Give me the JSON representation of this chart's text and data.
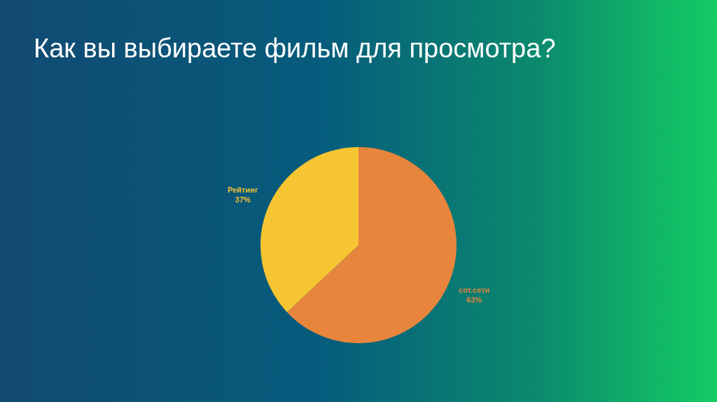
{
  "chart_data": {
    "type": "pie",
    "title": "Как вы выбираете фильм для просмотра?",
    "categories": [
      "сот.сети",
      "Рейтинг"
    ],
    "values": [
      63,
      37
    ],
    "colors": [
      "#e8853d",
      "#f7c531"
    ],
    "value_labels": [
      "63%",
      "37%"
    ]
  }
}
